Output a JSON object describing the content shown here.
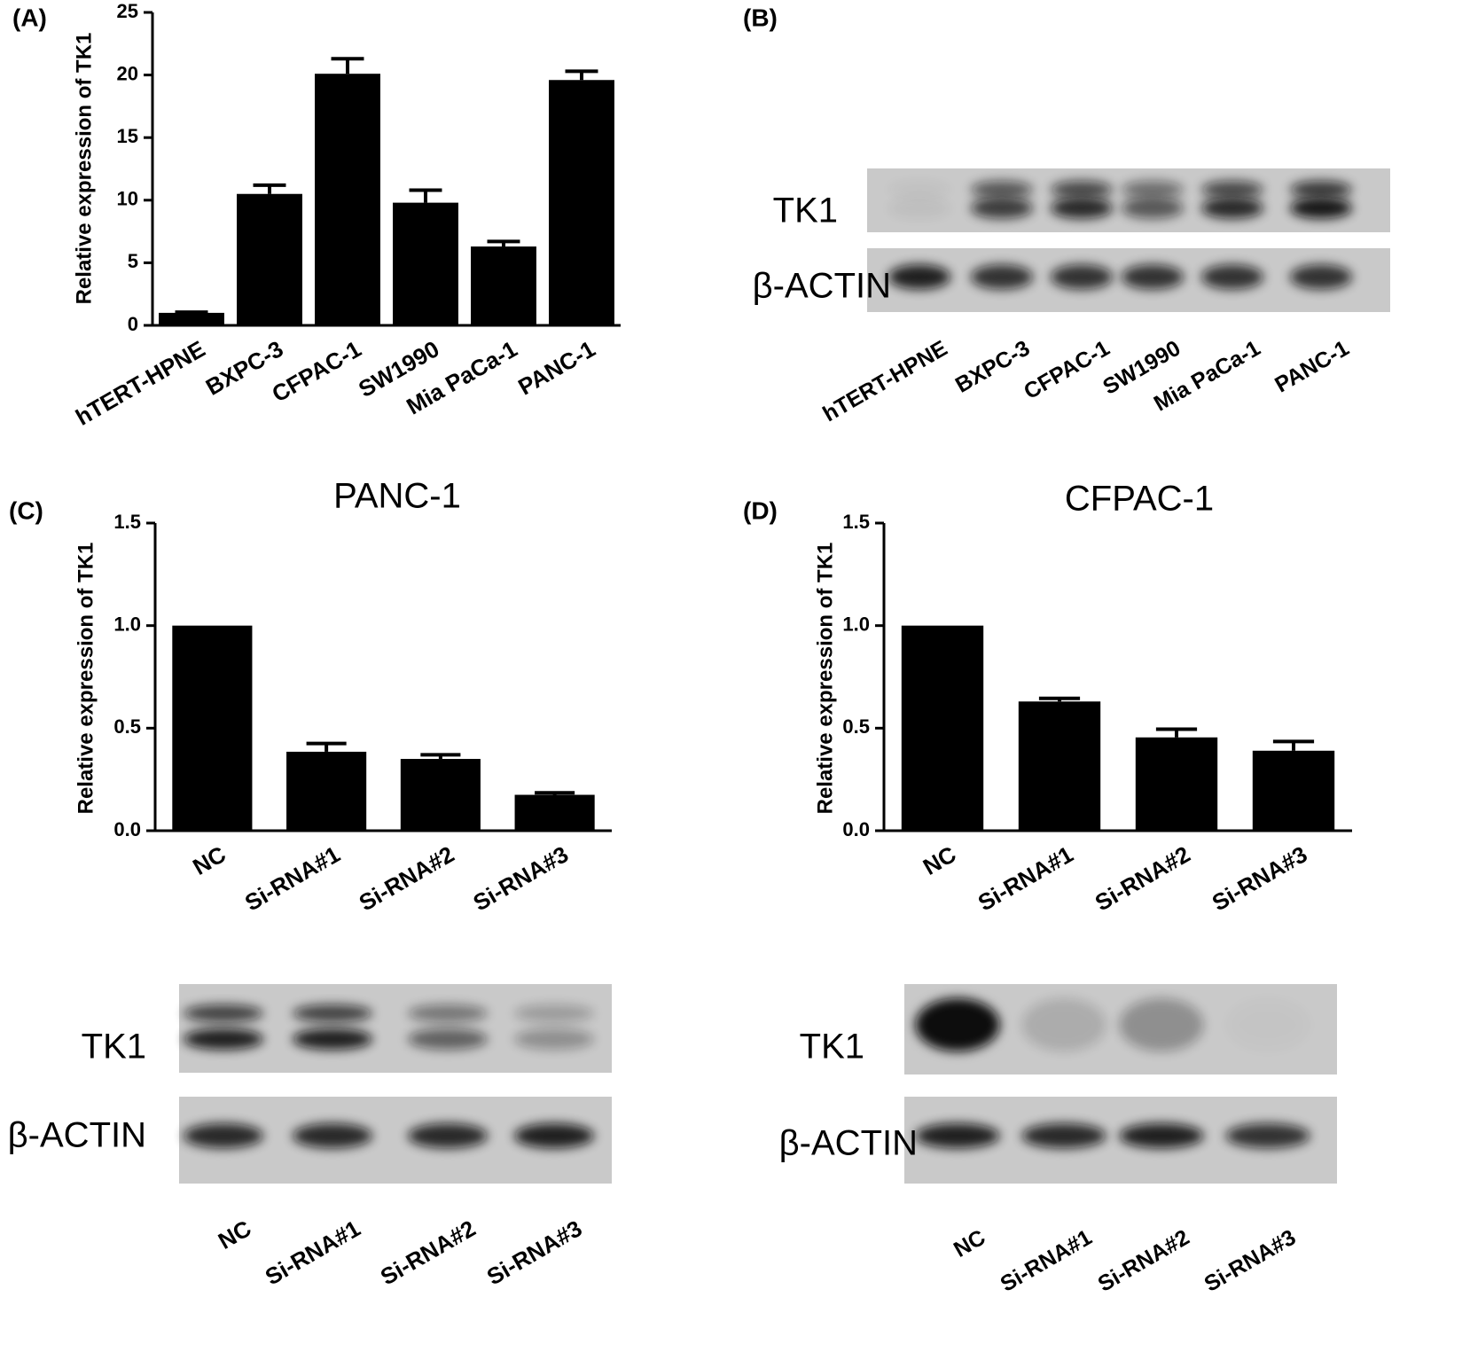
{
  "chart_data": [
    {
      "type": "bar",
      "y_label": "Relative expression of TK1",
      "categories": [
        "hTERT-HPNE",
        "BXPC-3",
        "CFPAC-1",
        "SW1990",
        "Mia PaCa-1",
        "PANC-1"
      ],
      "values": [
        1.0,
        10.5,
        20.1,
        9.8,
        6.3,
        19.6
      ],
      "errors": [
        0.05,
        0.7,
        1.2,
        1.0,
        0.4,
        0.7
      ],
      "color": "#000000",
      "ylim": [
        0,
        25
      ],
      "yticks": [
        0,
        5,
        10,
        15,
        20,
        25
      ],
      "grid": false
    },
    {
      "type": "bar",
      "title": "PANC-1",
      "y_label": "Relative expression of TK1",
      "categories": [
        "NC",
        "Si-RNA#1",
        "Si-RNA#2",
        "Si-RNA#3"
      ],
      "values": [
        1.0,
        0.385,
        0.35,
        0.175
      ],
      "errors": [
        0.0,
        0.04,
        0.02,
        0.01
      ],
      "color": "#000000",
      "ylim": [
        0,
        1.5
      ],
      "yticks": [
        {
          "value": 0,
          "label": "0.0"
        },
        0.5,
        {
          "value": 1,
          "label": "1.0"
        },
        1.5
      ],
      "grid": false
    },
    {
      "type": "bar",
      "title": "CFPAC-1",
      "y_label": "Relative expression of TK1",
      "categories": [
        "NC",
        "Si-RNA#1",
        "Si-RNA#2",
        "Si-RNA#3"
      ],
      "values": [
        1.0,
        0.63,
        0.455,
        0.39
      ],
      "errors": [
        0.0,
        0.015,
        0.04,
        0.045
      ],
      "color": "#000000",
      "ylim": [
        0,
        1.5
      ],
      "yticks": [
        {
          "value": 0,
          "label": "0.0"
        },
        0.5,
        {
          "value": 1,
          "label": "1.0"
        },
        1.5
      ],
      "grid": false
    }
  ],
  "panel_labels": [
    "(A)",
    "(B)",
    "(C)",
    "(D)"
  ],
  "blots": [
    {
      "rows": [
        "TK1",
        "β-ACTIN"
      ],
      "lanes": [
        "hTERT-HPNE",
        "BXPC-3",
        "CFPAC-1",
        "SW1990",
        "Mia PaCa-1",
        "PANC-1"
      ]
    },
    {
      "rows": [
        "TK1",
        "β-ACTIN"
      ],
      "lanes": [
        "NC",
        "Si-RNA#1",
        "Si-RNA#2",
        "Si-RNA#3"
      ]
    },
    {
      "rows": [
        "TK1",
        "β-ACTIN"
      ],
      "lanes": [
        "NC",
        "Si-RNA#1",
        "Si-RNA#2",
        "Si-RNA#3"
      ]
    }
  ]
}
